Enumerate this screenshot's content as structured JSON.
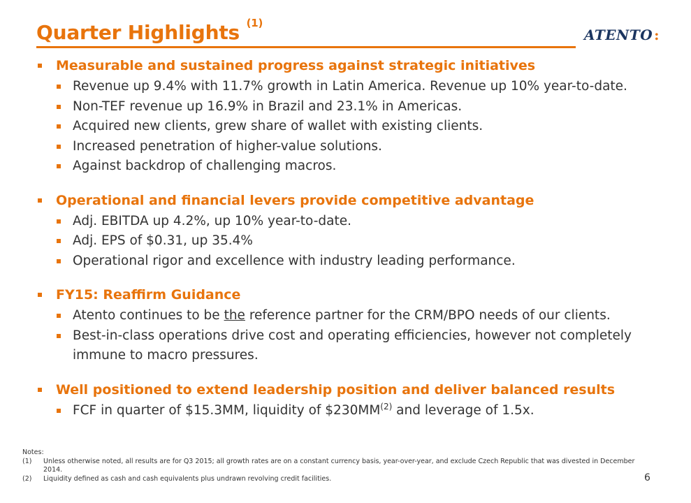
{
  "header": {
    "title": "Quarter Highlights",
    "title_note": "(1)",
    "logo_text": "ATENTO",
    "logo_colon": ":"
  },
  "sections": [
    {
      "heading": "Measurable and sustained progress against strategic initiatives",
      "items": [
        "Revenue up 9.4% with 11.7% growth in Latin America. Revenue up 10% year-to-date.",
        "Non-TEF revenue up 16.9% in Brazil and 23.1% in Americas.",
        "Acquired new clients, grew share of wallet with existing clients.",
        "Increased penetration of higher-value solutions.",
        "Against backdrop of challenging macros."
      ]
    },
    {
      "heading": "Operational and financial levers provide competitive advantage",
      "items": [
        "Adj. EBITDA up 4.2%, up 10% year-to-date.",
        "Adj. EPS of $0.31, up 35.4%",
        "Operational rigor and excellence with industry leading performance."
      ]
    },
    {
      "heading": "FY15: Reaffirm Guidance",
      "items": {
        "item0_pre": "Atento continues to be ",
        "item0_underlined": "the",
        "item0_post": " reference partner for the CRM/BPO needs of our clients.",
        "item1": "Best-in-class operations drive cost and operating efficiencies, however not completely immune to macro pressures."
      }
    },
    {
      "heading": "Well positioned to extend leadership position and deliver balanced results",
      "items": {
        "item0_pre": "FCF in quarter of $15.3MM, liquidity of $230MM",
        "item0_sup": "(2)",
        "item0_post": " and leverage of 1.5x."
      }
    }
  ],
  "notes": {
    "label": "Notes:",
    "entries": [
      {
        "num": "(1)",
        "text": "Unless otherwise noted, all results are for Q3 2015; all growth rates are on a constant currency basis, year-over-year, and exclude Czech Republic that was divested in December 2014."
      },
      {
        "num": "(2)",
        "text": "Liquidity defined as cash and cash equivalents plus undrawn revolving credit facilities."
      }
    ]
  },
  "page_number": "6",
  "colors": {
    "accent": "#e8740c",
    "text": "#333333",
    "logo": "#1b3560"
  }
}
